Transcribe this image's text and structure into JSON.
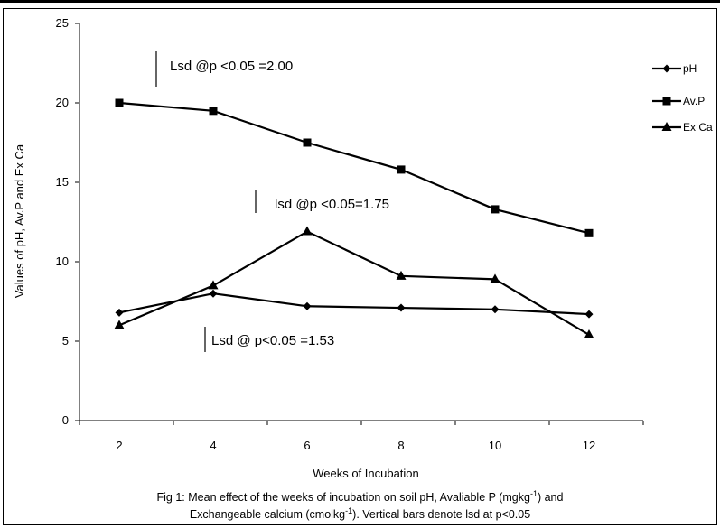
{
  "chart_data": {
    "type": "line",
    "xlabel": "Weeks of Incubation",
    "ylabel": "Values  of pH, Av.P and Ex Ca",
    "ylim": [
      0,
      25
    ],
    "yticks": [
      "0",
      "5",
      "10",
      "15",
      "20",
      "25"
    ],
    "categories": [
      "2",
      "4",
      "6",
      "8",
      "10",
      "12"
    ],
    "x": [
      2,
      4,
      6,
      8,
      10,
      12
    ],
    "series": [
      {
        "name": "pH",
        "marker": "diamond",
        "values": [
          6.8,
          8.0,
          7.2,
          7.1,
          7.0,
          6.7
        ]
      },
      {
        "name": "Av.P",
        "marker": "square",
        "values": [
          20.0,
          19.5,
          17.5,
          15.8,
          13.3,
          11.8
        ]
      },
      {
        "name": "Ex Ca",
        "marker": "triangle",
        "values": [
          6.0,
          8.5,
          11.9,
          9.1,
          8.9,
          5.4
        ]
      }
    ],
    "lsd_annotations": [
      {
        "text": "Lsd @p <0.05 =2.00",
        "value": 2.0
      },
      {
        "text": "lsd @p <0.05=1.75",
        "value": 1.75
      },
      {
        "text": "Lsd @ p<0.05 =1.53",
        "value": 1.53
      }
    ],
    "legend_position": "right",
    "line_color": "#000000"
  },
  "caption": {
    "line1_pre": "Fig 1: Mean effect of the weeks of incubation  on soil pH, Avaliable P (mgkg",
    "line1_sup": "-1",
    "line1_post": ") and",
    "line2_pre": "Exchangeable calcium (cmolkg",
    "line2_sup": "-1",
    "line2_post": ").  Vertical bars denote lsd at p<0.05"
  }
}
